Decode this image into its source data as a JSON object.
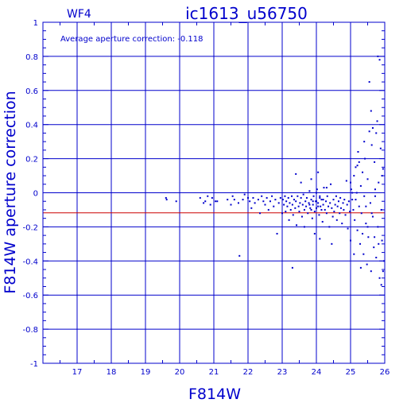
{
  "chart_data": {
    "type": "scatter",
    "chip_label": "WF4",
    "title": "ic1613_u56750",
    "annotation": "Average aperture correction: -0.118",
    "xlabel": "F814W",
    "ylabel": "F814W aperture correction",
    "xlim": [
      16,
      26
    ],
    "ylim": [
      -1,
      1
    ],
    "x_ticks": [
      "17",
      "18",
      "19",
      "20",
      "21",
      "22",
      "23",
      "24",
      "25",
      "26"
    ],
    "y_ticks": [
      "-1",
      "-0.8",
      "-0.6",
      "-0.4",
      "-0.2",
      "0",
      "0.2",
      "0.4",
      "0.6",
      "0.8",
      "1"
    ],
    "grid": true,
    "reference_line": {
      "y": -0.118,
      "color": "#cc0000"
    },
    "colors": {
      "axes": "#0000cc",
      "points": "#0000cc",
      "reference": "#cc0000"
    },
    "points": [
      [
        19.6,
        -0.03
      ],
      [
        19.62,
        -0.04
      ],
      [
        19.9,
        -0.05
      ],
      [
        20.6,
        -0.03
      ],
      [
        20.7,
        -0.06
      ],
      [
        20.75,
        -0.05
      ],
      [
        20.82,
        -0.02
      ],
      [
        20.9,
        -0.07
      ],
      [
        20.95,
        -0.03
      ],
      [
        21.05,
        -0.05
      ],
      [
        21.1,
        -0.05
      ],
      [
        21.4,
        -0.04
      ],
      [
        21.5,
        -0.07
      ],
      [
        21.55,
        -0.02
      ],
      [
        21.6,
        -0.04
      ],
      [
        21.72,
        -0.06
      ],
      [
        21.75,
        -0.37
      ],
      [
        21.85,
        -0.04
      ],
      [
        21.9,
        -0.01
      ],
      [
        22.0,
        -0.03
      ],
      [
        22.05,
        -0.05
      ],
      [
        22.1,
        -0.09
      ],
      [
        22.15,
        -0.03
      ],
      [
        22.2,
        -0.06
      ],
      [
        22.3,
        -0.04
      ],
      [
        22.35,
        -0.12
      ],
      [
        22.4,
        -0.02
      ],
      [
        22.45,
        -0.05
      ],
      [
        22.5,
        -0.07
      ],
      [
        22.55,
        -0.03
      ],
      [
        22.6,
        -0.1
      ],
      [
        22.65,
        -0.05
      ],
      [
        22.7,
        -0.02
      ],
      [
        22.75,
        -0.08
      ],
      [
        22.8,
        -0.04
      ],
      [
        22.85,
        -0.24
      ],
      [
        22.9,
        -0.06
      ],
      [
        22.95,
        -0.03
      ],
      [
        23.0,
        -0.12
      ],
      [
        23.02,
        -0.04
      ],
      [
        23.05,
        -0.07
      ],
      [
        23.08,
        -0.02
      ],
      [
        23.1,
        -0.11
      ],
      [
        23.12,
        -0.05
      ],
      [
        23.15,
        -0.08
      ],
      [
        23.18,
        -0.03
      ],
      [
        23.2,
        -0.16
      ],
      [
        23.22,
        -0.06
      ],
      [
        23.25,
        -0.1
      ],
      [
        23.28,
        -0.02
      ],
      [
        23.3,
        -0.07
      ],
      [
        23.32,
        -0.13
      ],
      [
        23.35,
        -0.04
      ],
      [
        23.38,
        -0.09
      ],
      [
        23.4,
        -0.05
      ],
      [
        23.42,
        -0.19
      ],
      [
        23.45,
        -0.02
      ],
      [
        23.48,
        -0.08
      ],
      [
        23.5,
        -0.11
      ],
      [
        23.52,
        -0.06
      ],
      [
        23.55,
        -0.03
      ],
      [
        23.58,
        -0.14
      ],
      [
        23.6,
        -0.07
      ],
      [
        23.62,
        -0.01
      ],
      [
        23.65,
        -0.1
      ],
      [
        23.68,
        -0.05
      ],
      [
        23.7,
        -0.08
      ],
      [
        23.72,
        -0.03
      ],
      [
        23.75,
        -0.12
      ],
      [
        23.78,
        -0.06
      ],
      [
        23.8,
        0.01
      ],
      [
        23.82,
        -0.09
      ],
      [
        23.85,
        -0.04
      ],
      [
        23.88,
        -0.15
      ],
      [
        23.9,
        -0.07
      ],
      [
        23.92,
        -0.02
      ],
      [
        23.95,
        -0.11
      ],
      [
        23.98,
        -0.05
      ],
      [
        24.0,
        -0.09
      ],
      [
        24.02,
        0.02
      ],
      [
        24.05,
        -0.06
      ],
      [
        24.08,
        -0.13
      ],
      [
        24.1,
        -0.03
      ],
      [
        24.12,
        -0.08
      ],
      [
        24.15,
        -0.04
      ],
      [
        24.18,
        -0.17
      ],
      [
        24.2,
        -0.07
      ],
      [
        24.22,
        0.03
      ],
      [
        24.25,
        -0.1
      ],
      [
        24.28,
        -0.05
      ],
      [
        24.3,
        -0.12
      ],
      [
        24.32,
        -0.02
      ],
      [
        24.35,
        -0.08
      ],
      [
        24.38,
        -0.2
      ],
      [
        24.4,
        -0.06
      ],
      [
        24.42,
        0.05
      ],
      [
        24.45,
        -0.09
      ],
      [
        24.48,
        -0.14
      ],
      [
        24.5,
        -0.04
      ],
      [
        24.52,
        -0.11
      ],
      [
        24.55,
        -0.07
      ],
      [
        24.58,
        -0.02
      ],
      [
        24.6,
        -0.16
      ],
      [
        24.62,
        -0.08
      ],
      [
        24.65,
        -0.05
      ],
      [
        24.68,
        -0.12
      ],
      [
        24.7,
        -0.03
      ],
      [
        24.72,
        -0.09
      ],
      [
        24.75,
        -0.18
      ],
      [
        24.78,
        -0.06
      ],
      [
        24.8,
        -0.1
      ],
      [
        24.82,
        -0.04
      ],
      [
        24.85,
        -0.13
      ],
      [
        24.88,
        0.07
      ],
      [
        24.9,
        -0.07
      ],
      [
        24.92,
        -0.21
      ],
      [
        24.95,
        -0.05
      ],
      [
        24.98,
        -0.11
      ],
      [
        23.4,
        0.11
      ],
      [
        23.55,
        0.06
      ],
      [
        24.05,
        0.12
      ],
      [
        23.85,
        0.08
      ],
      [
        24.3,
        0.03
      ],
      [
        23.65,
        -0.2
      ],
      [
        23.95,
        -0.24
      ],
      [
        24.1,
        -0.27
      ],
      [
        24.45,
        -0.3
      ],
      [
        23.3,
        -0.44
      ],
      [
        23.85,
        -0.1
      ],
      [
        24.0,
        -0.05
      ],
      [
        24.15,
        -0.1
      ],
      [
        24.0,
        0.0
      ],
      [
        23.9,
        -0.05
      ],
      [
        24.1,
        -0.02
      ],
      [
        24.2,
        -0.04
      ],
      [
        23.8,
        -0.07
      ],
      [
        24.05,
        -0.08
      ],
      [
        25.0,
        0.06
      ],
      [
        25.02,
        0.02
      ],
      [
        25.05,
        -0.04
      ],
      [
        25.08,
        -0.1
      ],
      [
        25.1,
        0.1
      ],
      [
        25.12,
        -0.16
      ],
      [
        25.15,
        0.15
      ],
      [
        25.18,
        0.0
      ],
      [
        25.2,
        -0.22
      ],
      [
        25.22,
        0.24
      ],
      [
        25.25,
        -0.08
      ],
      [
        25.28,
        -0.3
      ],
      [
        25.3,
        0.04
      ],
      [
        25.32,
        -0.12
      ],
      [
        25.35,
        0.12
      ],
      [
        25.38,
        -0.36
      ],
      [
        25.4,
        -0.02
      ],
      [
        25.42,
        0.2
      ],
      [
        25.45,
        -0.18
      ],
      [
        25.48,
        -0.42
      ],
      [
        25.5,
        0.08
      ],
      [
        25.52,
        -0.26
      ],
      [
        25.55,
        0.36
      ],
      [
        25.58,
        -0.06
      ],
      [
        25.6,
        -0.46
      ],
      [
        25.62,
        0.28
      ],
      [
        25.65,
        -0.14
      ],
      [
        25.68,
        -0.32
      ],
      [
        25.7,
        0.18
      ],
      [
        25.72,
        -0.02
      ],
      [
        25.75,
        -0.38
      ],
      [
        25.78,
        0.42
      ],
      [
        25.8,
        -0.2
      ],
      [
        25.82,
        0.06
      ],
      [
        25.85,
        -0.5
      ],
      [
        25.88,
        0.26
      ],
      [
        25.9,
        -0.1
      ],
      [
        25.92,
        -0.28
      ],
      [
        25.95,
        0.14
      ],
      [
        25.98,
        -0.4
      ],
      [
        25.0,
        -0.28
      ],
      [
        25.1,
        -0.36
      ],
      [
        25.2,
        0.16
      ],
      [
        25.3,
        -0.44
      ],
      [
        25.4,
        0.3
      ],
      [
        25.5,
        -0.2
      ],
      [
        25.6,
        0.48
      ],
      [
        25.7,
        -0.26
      ],
      [
        25.8,
        0.8
      ],
      [
        25.85,
        0.78
      ],
      [
        25.55,
        0.65
      ],
      [
        25.65,
        0.38
      ],
      [
        25.75,
        0.35
      ],
      [
        25.9,
        -0.54
      ],
      [
        25.95,
        -0.46
      ],
      [
        25.45,
        -0.08
      ],
      [
        25.25,
        0.18
      ],
      [
        25.35,
        -0.24
      ],
      [
        25.15,
        -0.04
      ],
      [
        25.05,
        0.0
      ],
      [
        25.62,
        -0.12
      ],
      [
        25.72,
        0.02
      ],
      [
        25.82,
        -0.3
      ],
      [
        25.92,
        0.1
      ]
    ]
  }
}
